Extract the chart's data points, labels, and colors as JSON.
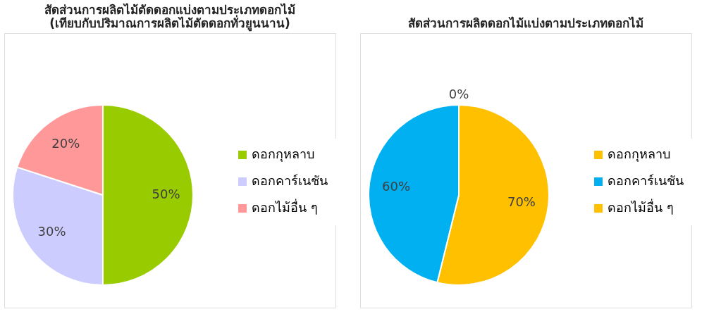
{
  "chart_data": [
    {
      "type": "pie",
      "title": [
        "สัดส่วนการผลิตไม้ตัดดอกแบ่งตามประเภทดอกไม้",
        "(เทียบกับปริมาณการผลิตไม้ตัดดอกทั่วยูนนาน)"
      ],
      "categories": [
        "ดอกกุหลาบ",
        "ดอกคาร์เนชัน",
        "ดอกไม้อื่น ๆ"
      ],
      "values": [
        50,
        30,
        20
      ],
      "value_labels": [
        "50%",
        "30%",
        "20%"
      ],
      "colors": [
        "#99cc00",
        "#ccccff",
        "#ff9999"
      ],
      "legend": "right"
    },
    {
      "type": "pie",
      "title": "สัดส่วนการผลิตดอกไม้แบ่งตามประเภทดอกไม้",
      "categories": [
        "ดอกกุหลาบ",
        "ดอกคาร์เนชัน",
        "ดอกไม้อื่น ๆ"
      ],
      "values": [
        70,
        60,
        0
      ],
      "value_labels": [
        "70%",
        "60%",
        "0%"
      ],
      "colors": [
        "#ffc000",
        "#00b0f0",
        "#ffc000"
      ],
      "legend": "right"
    }
  ]
}
